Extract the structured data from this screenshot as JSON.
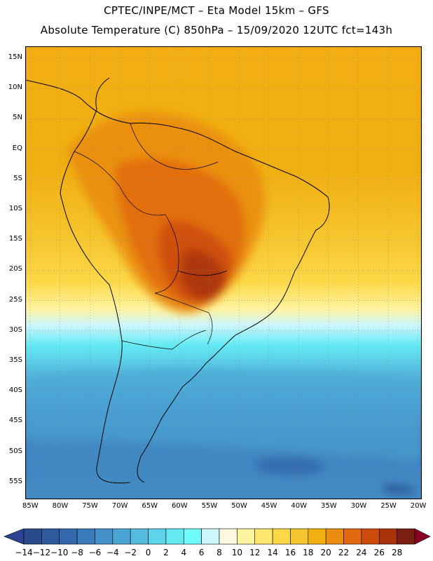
{
  "title_line1": "CPTEC/INPE/MCT  –   Eta Model 15km  –  GFS",
  "title_line2": "Absolute Temperature (C) 850hPa  –  15/09/2020 12UTC fct=143h",
  "lat_labels": [
    "15N",
    "10N",
    "5N",
    "EQ",
    "5S",
    "10S",
    "15S",
    "20S",
    "25S",
    "30S",
    "35S",
    "40S",
    "45S",
    "50S",
    "55S"
  ],
  "lon_labels": [
    "85W",
    "80W",
    "75W",
    "70W",
    "65W",
    "60W",
    "55W",
    "50W",
    "45W",
    "40W",
    "35W",
    "30W",
    "25W",
    "20W"
  ],
  "colorbar": {
    "labels": [
      "−14",
      "−12",
      "−10",
      "−8",
      "−6",
      "−4",
      "−2",
      "0",
      "2",
      "4",
      "6",
      "8",
      "10",
      "12",
      "14",
      "16",
      "18",
      "20",
      "22",
      "24",
      "26",
      "28"
    ],
    "colors": [
      "#2a4a8c",
      "#2f5a9e",
      "#3469ad",
      "#3b7bbb",
      "#4590c8",
      "#4ba5d4",
      "#55bcdf",
      "#5fd3e9",
      "#63eaf3",
      "#70fbfb",
      "#cdf6fb",
      "#fff8e0",
      "#fff4a0",
      "#ffe770",
      "#fcd848",
      "#f6c630",
      "#f0b010",
      "#ea8d12",
      "#e0680e",
      "#cc4a0c",
      "#a8320a",
      "#7a1e10"
    ],
    "under_color": "#2e4292",
    "over_color": "#8a0024"
  }
}
